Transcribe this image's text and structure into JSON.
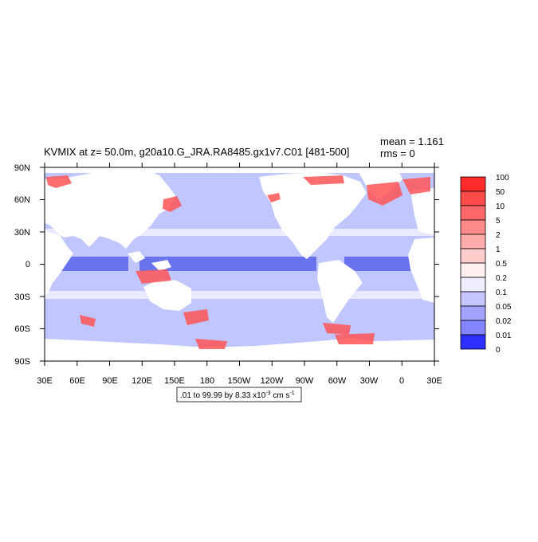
{
  "title": "KVMIX at z=  50.0m, g20a10.G_JRA.RA8485.gx1v7.C01 [481-500]",
  "stats": {
    "mean": "mean = 1.161",
    "rms": "rms = 0"
  },
  "lat_ticks": [
    "90N",
    "60N",
    "30N",
    "0",
    "30S",
    "60S",
    "90S"
  ],
  "lon_ticks": [
    "30E",
    "60E",
    "90E",
    "120E",
    "150E",
    "180",
    "150W",
    "120W",
    "90W",
    "60W",
    "30W",
    "0",
    "30E"
  ],
  "colorbar": {
    "labels": [
      "100",
      "50",
      "10",
      "5",
      "2",
      "1",
      "0.5",
      "0.2",
      "0.1",
      "0.05",
      "0.02",
      "0.01",
      "0"
    ],
    "colors": [
      "#ff2a2a",
      "#ff4a4a",
      "#ff6868",
      "#ff8a8a",
      "#ffabab",
      "#ffcccc",
      "#fff0f0",
      "#eeeeff",
      "#c4c4ff",
      "#a3a3ff",
      "#8484ff",
      "#5e5eff",
      "#2e2eff"
    ]
  },
  "contour_info": {
    "prefix": ".01 to 99.99 by 8.33 x10",
    "exp": "-3",
    "units": " cm s",
    "unit_exp": "-1"
  },
  "colors": {
    "ocean": "#c0c6ff",
    "land": "#ffffff",
    "equatorial_band": "#6a73ee",
    "coastal_high": "#ff5555",
    "subtropical_low": "#e9e9ff"
  }
}
